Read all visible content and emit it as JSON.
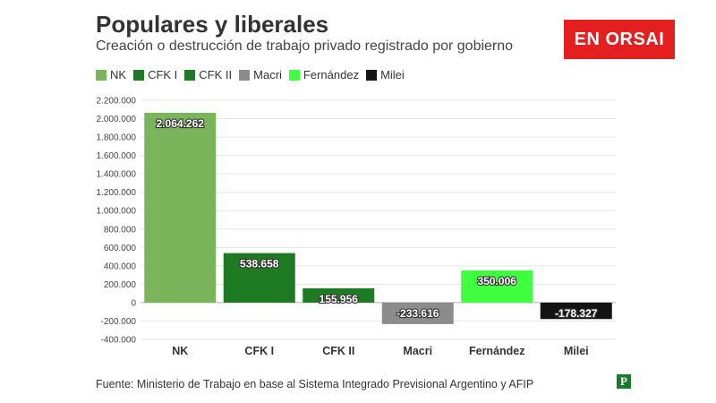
{
  "header": {
    "title": "Populares y liberales",
    "subtitle": "Creación o destrucción de trabajo privado registrado por gobierno",
    "logo_text": "EN ORSAI"
  },
  "footer": {
    "source": "Fuente: Ministerio de Trabajo en base al Sistema Integrado Previsional Argentino y AFIP",
    "p_logo": "P"
  },
  "chart_data": {
    "type": "bar",
    "title": "Populares y liberales",
    "subtitle": "Creación o destrucción de trabajo privado registrado por gobierno",
    "categories": [
      "NK",
      "CFK I",
      "CFK II",
      "Macri",
      "Fernández",
      "Milei"
    ],
    "values": [
      2064262,
      538658,
      155956,
      -233616,
      350006,
      -178327
    ],
    "value_labels": [
      "2.064.262",
      "538.658",
      "155.956",
      "-233.616",
      "350.006",
      "-178.327"
    ],
    "colors": [
      "#7ab55c",
      "#1e7a23",
      "#1e7a23",
      "#8c8c8c",
      "#3fff3f",
      "#141414"
    ],
    "ylim": [
      -400000,
      2200000
    ],
    "yticks": [
      2200000,
      2000000,
      1800000,
      1600000,
      1400000,
      1200000,
      1000000,
      800000,
      600000,
      400000,
      200000,
      0,
      -200000,
      -400000
    ],
    "ytick_labels": [
      "2.200.000",
      "2.000.000",
      "1.800.000",
      "1.600.000",
      "1.400.000",
      "1.200.000",
      "1.000.000",
      "800.000",
      "600.000",
      "400.000",
      "200.000",
      "0",
      "-200.000",
      "-400.000"
    ],
    "grid": true,
    "legend": {
      "placement": "top-left",
      "entries": [
        {
          "label": "NK",
          "color": "#7ab55c"
        },
        {
          "label": "CFK I",
          "color": "#1e7a23"
        },
        {
          "label": "CFK II",
          "color": "#1e7a23"
        },
        {
          "label": "Macri",
          "color": "#8c8c8c"
        },
        {
          "label": "Fernández",
          "color": "#3fff3f"
        },
        {
          "label": "Milei",
          "color": "#141414"
        }
      ]
    }
  }
}
